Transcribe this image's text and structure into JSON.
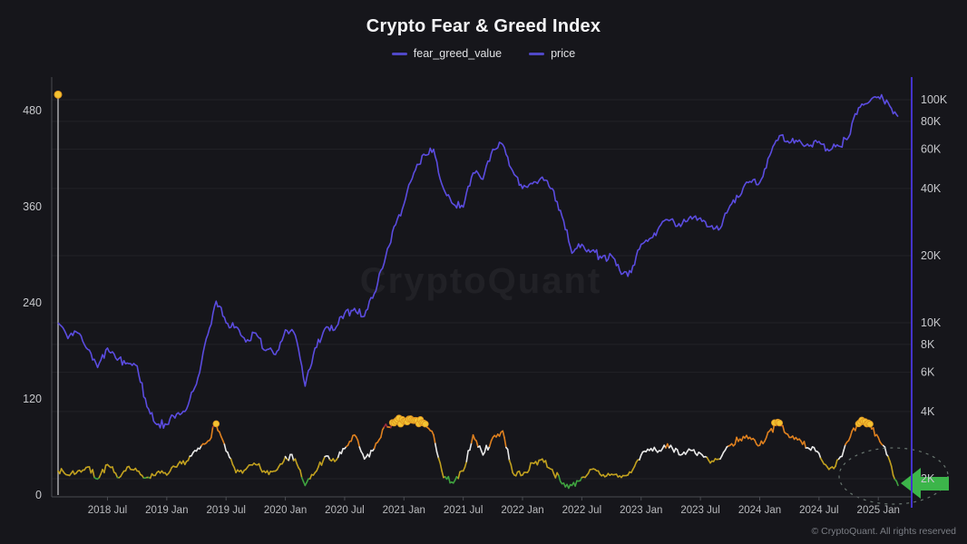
{
  "title": "Crypto Fear & Greed Index",
  "legend": {
    "items": [
      {
        "label": "fear_greed_value",
        "color": "#5048c8"
      },
      {
        "label": "price",
        "color": "#5048c8"
      }
    ]
  },
  "watermark": "CryptoQuant",
  "footer": "© CryptoQuant. All rights reserved",
  "colors": {
    "background": "#16161b",
    "grid": "rgba(255,255,255,0.055)",
    "axis_line": "#4a4c52",
    "right_axis_line": "#4433cc",
    "price_line": "#5b4ce0",
    "marker_fill": "#f3c331",
    "marker_stroke": "#dd9220",
    "artifact_line": "#a9a9ad",
    "arrow": "#3cb54a",
    "ellipse": "#93a79b",
    "text_secondary": "#c7c8cc",
    "text_muted": "#b9babd",
    "watermark_fill": "rgba(255,255,255,0.05)",
    "bands": [
      {
        "max": 22,
        "color": "#3fa33f",
        "name": "extreme-fear-green"
      },
      {
        "max": 46,
        "color": "#c2a11f",
        "name": "fear-yellow"
      },
      {
        "max": 61,
        "color": "#e8e8e8",
        "name": "neutral-white"
      },
      {
        "max": 86,
        "color": "#e0811f",
        "name": "greed-orange"
      },
      {
        "max": 101,
        "color": "#9c2b3d",
        "name": "extreme-greed-red"
      }
    ]
  },
  "chart_data": {
    "type": "line",
    "title": "Crypto Fear & Greed Index",
    "x": [
      "2018-02",
      "2018-03",
      "2018-04",
      "2018-05",
      "2018-06",
      "2018-07",
      "2018-08",
      "2018-09",
      "2018-10",
      "2018-11",
      "2018-12",
      "2019-01",
      "2019-02",
      "2019-03",
      "2019-04",
      "2019-05",
      "2019-06",
      "2019-07",
      "2019-08",
      "2019-09",
      "2019-10",
      "2019-11",
      "2019-12",
      "2020-01",
      "2020-02",
      "2020-03",
      "2020-04",
      "2020-05",
      "2020-06",
      "2020-07",
      "2020-08",
      "2020-09",
      "2020-10",
      "2020-11",
      "2020-12",
      "2021-01",
      "2021-02",
      "2021-03",
      "2021-04",
      "2021-05",
      "2021-06",
      "2021-07",
      "2021-08",
      "2021-09",
      "2021-10",
      "2021-11",
      "2021-12",
      "2022-01",
      "2022-02",
      "2022-03",
      "2022-04",
      "2022-05",
      "2022-06",
      "2022-07",
      "2022-08",
      "2022-09",
      "2022-10",
      "2022-11",
      "2022-12",
      "2023-01",
      "2023-02",
      "2023-03",
      "2023-04",
      "2023-05",
      "2023-06",
      "2023-07",
      "2023-08",
      "2023-09",
      "2023-10",
      "2023-11",
      "2023-12",
      "2024-01",
      "2024-02",
      "2024-03",
      "2024-04",
      "2024-05",
      "2024-06",
      "2024-07",
      "2024-08",
      "2024-09",
      "2024-10",
      "2024-11",
      "2024-12",
      "2025-01",
      "2025-02",
      "2025-03"
    ],
    "series": [
      {
        "name": "fear_greed_value",
        "axis": "left",
        "style": "value-color-banded",
        "values": [
          30,
          25,
          30,
          35,
          20,
          38,
          22,
          35,
          30,
          22,
          28,
          25,
          35,
          42,
          55,
          65,
          89,
          55,
          28,
          32,
          38,
          28,
          30,
          48,
          45,
          12,
          28,
          48,
          42,
          58,
          75,
          45,
          58,
          85,
          90,
          92,
          93,
          90,
          75,
          22,
          15,
          30,
          75,
          50,
          72,
          80,
          28,
          25,
          40,
          45,
          32,
          14,
          12,
          22,
          32,
          24,
          26,
          22,
          28,
          50,
          58,
          55,
          62,
          50,
          56,
          52,
          40,
          45,
          62,
          70,
          72,
          62,
          80,
          90,
          72,
          70,
          58,
          52,
          32,
          45,
          68,
          89,
          90,
          72,
          48,
          12
        ]
      },
      {
        "name": "price",
        "axis": "right",
        "style": "solid",
        "values": [
          10000,
          8500,
          9000,
          7600,
          6300,
          7700,
          6800,
          6600,
          6400,
          4200,
          3500,
          3500,
          3900,
          4100,
          5300,
          8500,
          12500,
          10000,
          9600,
          8200,
          9000,
          7500,
          7200,
          9300,
          8800,
          5200,
          7700,
          9400,
          9300,
          11000,
          11600,
          10700,
          13500,
          18500,
          27000,
          34000,
          47000,
          57000,
          60000,
          40000,
          34000,
          33000,
          47000,
          44000,
          60000,
          63000,
          48000,
          40000,
          42000,
          45000,
          40000,
          30000,
          20500,
          22500,
          21000,
          19500,
          20000,
          16500,
          16800,
          22500,
          24000,
          27500,
          29000,
          27000,
          30000,
          29500,
          27000,
          26500,
          33500,
          37000,
          43000,
          42500,
          56000,
          69000,
          64000,
          66000,
          62000,
          65000,
          59000,
          62000,
          68000,
          92000,
          97000,
          103000,
          97000,
          84000
        ]
      }
    ],
    "left_axis": {
      "ticks": [
        0,
        120,
        240,
        360,
        480
      ]
    },
    "right_axis": {
      "scale": "log",
      "ticks": [
        {
          "label": "2K",
          "value": 2000
        },
        {
          "label": "4K",
          "value": 4000
        },
        {
          "label": "6K",
          "value": 6000
        },
        {
          "label": "8K",
          "value": 8000
        },
        {
          "label": "10K",
          "value": 10000
        },
        {
          "label": "20K",
          "value": 20000
        },
        {
          "label": "40K",
          "value": 40000
        },
        {
          "label": "60K",
          "value": 60000
        },
        {
          "label": "80K",
          "value": 80000
        },
        {
          "label": "100K",
          "value": 100000
        }
      ]
    },
    "x_ticks": [
      {
        "label": "2018 Jul",
        "index": 5
      },
      {
        "label": "2019 Jan",
        "index": 11
      },
      {
        "label": "2019 Jul",
        "index": 17
      },
      {
        "label": "2020 Jan",
        "index": 23
      },
      {
        "label": "2020 Jul",
        "index": 29
      },
      {
        "label": "2021 Jan",
        "index": 35
      },
      {
        "label": "2021 Jul",
        "index": 41
      },
      {
        "label": "2022 Jan",
        "index": 47
      },
      {
        "label": "2022 Jul",
        "index": 53
      },
      {
        "label": "2023 Jan",
        "index": 59
      },
      {
        "label": "2023 Jul",
        "index": 65
      },
      {
        "label": "2024 Jan",
        "index": 71
      },
      {
        "label": "2024 Jul",
        "index": 77
      },
      {
        "label": "2025 Jan",
        "index": 83
      }
    ],
    "annotations": {
      "extreme_greed_marker_threshold": 88.5,
      "first_point_artifact": {
        "index": 0,
        "value": 500
      },
      "highlight_latest_point": {
        "shape": "dashed-ellipse-with-green-arrow",
        "index": 85
      }
    }
  }
}
